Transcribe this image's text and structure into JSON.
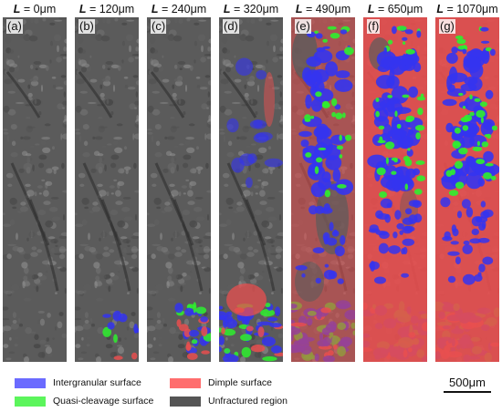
{
  "panels": [
    {
      "id": "a",
      "letter": "(a)",
      "length_label": "= 0μm",
      "damage_stage": 0
    },
    {
      "id": "b",
      "letter": "(b)",
      "length_label": "= 120μm",
      "damage_stage": 1
    },
    {
      "id": "c",
      "letter": "(c)",
      "length_label": "= 240μm",
      "damage_stage": 2
    },
    {
      "id": "d",
      "letter": "(d)",
      "length_label": "= 320μm",
      "damage_stage": 3
    },
    {
      "id": "e",
      "letter": "(e)",
      "length_label": "= 490μm",
      "damage_stage": 4
    },
    {
      "id": "f",
      "letter": "(f)",
      "length_label": "= 650μm",
      "damage_stage": 5
    },
    {
      "id": "g",
      "letter": "(g)",
      "length_label": "= 1070μm",
      "damage_stage": 6
    }
  ],
  "length_symbol": "L",
  "legend": [
    {
      "key": "intergranular",
      "label": "Intergranular surface",
      "color": "#6b6bff"
    },
    {
      "key": "quasi_cleavage",
      "label": "Quasi-cleavage surface",
      "color": "#5cf55c"
    },
    {
      "key": "dimple",
      "label": "Dimple surface",
      "color": "#ff6e6e"
    },
    {
      "key": "unfractured",
      "label": "Unfractured region",
      "color": "#555555"
    }
  ],
  "region_colors": {
    "intergranular": "#3434f0",
    "quasi_cleavage": "#2ef02e",
    "dimple": "#e84f4f",
    "base": "#5b5b5b"
  },
  "scale_bar": {
    "label": "500μm"
  }
}
